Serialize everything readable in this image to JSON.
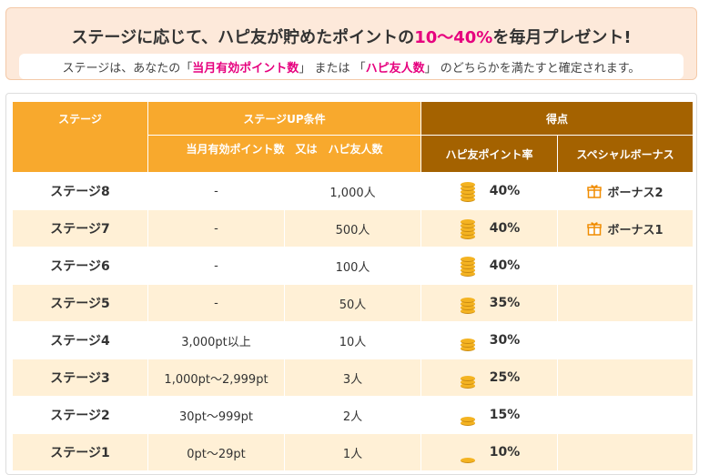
{
  "banner": {
    "title_prefix": "ステージに応じて、ハピ友が貯めたポイントの",
    "title_highlight": "10～40%",
    "title_suffix": "を毎月プレゼント!",
    "note_prefix": "ステージは、あなたの「",
    "note_highlight1": "当月有効ポイント数",
    "note_mid": "」 または 「",
    "note_highlight2": "ハピ友人数",
    "note_suffix": "」 のどちらかを満たすと確定されます。"
  },
  "table": {
    "header": {
      "stage": "ステージ",
      "conditions": "ステージUP条件",
      "score": "得点",
      "condition_detail": "当月有効ポイント数　又は　ハピ友人数",
      "rate": "ハピ友ポイント率",
      "special": "スペシャルボーナス"
    },
    "rows": [
      {
        "stage": "ステージ8",
        "points": "-",
        "friends": "1,000人",
        "coins": 5,
        "rate": "40%",
        "bonus": "ボーナス2"
      },
      {
        "stage": "ステージ7",
        "points": "-",
        "friends": "500人",
        "coins": 5,
        "rate": "40%",
        "bonus": "ボーナス1"
      },
      {
        "stage": "ステージ6",
        "points": "-",
        "friends": "100人",
        "coins": 5,
        "rate": "40%",
        "bonus": ""
      },
      {
        "stage": "ステージ5",
        "points": "-",
        "friends": "50人",
        "coins": 4,
        "rate": "35%",
        "bonus": ""
      },
      {
        "stage": "ステージ4",
        "points": "3,000pt以上",
        "friends": "10人",
        "coins": 3,
        "rate": "30%",
        "bonus": ""
      },
      {
        "stage": "ステージ3",
        "points": "1,000pt～2,999pt",
        "friends": "3人",
        "coins": 3,
        "rate": "25%",
        "bonus": ""
      },
      {
        "stage": "ステージ2",
        "points": "30pt～999pt",
        "friends": "2人",
        "coins": 2,
        "rate": "15%",
        "bonus": ""
      },
      {
        "stage": "ステージ1",
        "points": "0pt～29pt",
        "friends": "1人",
        "coins": 1,
        "rate": "10%",
        "bonus": ""
      }
    ]
  },
  "colors": {
    "header_orange": "#f8a92d",
    "header_brown": "#a46200",
    "row_alt": "#fff0d6",
    "highlight": "#e6007e"
  }
}
